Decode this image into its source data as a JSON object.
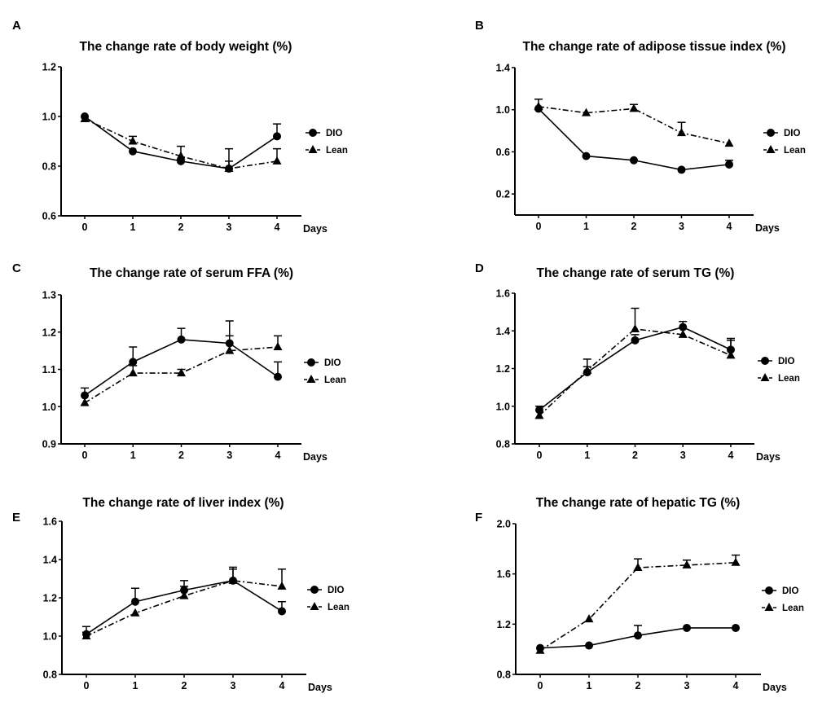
{
  "chart_data": [
    {
      "panel": "A",
      "type": "line",
      "title": "The change rate of body weight (%)",
      "xlabel": "Days",
      "categories": [
        "0",
        "1",
        "2",
        "3",
        "4"
      ],
      "yticks": [
        "0.6",
        "0.8",
        "1.0",
        "1.2"
      ],
      "ylim": [
        0.6,
        1.2
      ],
      "grid": false,
      "legend": "right",
      "series": [
        {
          "name": "DIO",
          "marker": "circle",
          "line": "solid",
          "values": [
            1.0,
            0.86,
            0.82,
            0.79,
            0.92
          ],
          "error": [
            0,
            0,
            0,
            0.03,
            0.05
          ]
        },
        {
          "name": "Lean",
          "marker": "triangle",
          "line": "dash-dot",
          "values": [
            0.99,
            0.9,
            0.84,
            0.79,
            0.82
          ],
          "error": [
            0,
            0.02,
            0.04,
            0.08,
            0.05
          ]
        }
      ]
    },
    {
      "panel": "B",
      "type": "line",
      "title": "The change rate of adipose tissue index (%)",
      "xlabel": "Days",
      "categories": [
        "0",
        "1",
        "2",
        "3",
        "4"
      ],
      "yticks": [
        "0.2",
        "0.6",
        "1.0",
        "1.4"
      ],
      "ylim": [
        0.0,
        1.4
      ],
      "grid": false,
      "legend": "right",
      "series": [
        {
          "name": "DIO",
          "marker": "circle",
          "line": "solid",
          "values": [
            1.01,
            0.56,
            0.52,
            0.43,
            0.48
          ],
          "error": [
            0.09,
            0,
            0,
            0,
            0.04
          ]
        },
        {
          "name": "Lean",
          "marker": "triangle",
          "line": "dash-dot",
          "values": [
            1.03,
            0.97,
            1.01,
            0.78,
            0.68
          ],
          "error": [
            0,
            0,
            0.04,
            0.1,
            0
          ]
        }
      ]
    },
    {
      "panel": "C",
      "type": "line",
      "title": "The change rate of serum FFA (%)",
      "xlabel": "Days",
      "categories": [
        "0",
        "1",
        "2",
        "3",
        "4"
      ],
      "yticks": [
        "0.9",
        "1.0",
        "1.1",
        "1.2",
        "1.3"
      ],
      "ylim": [
        0.9,
        1.3
      ],
      "grid": false,
      "legend": "right",
      "series": [
        {
          "name": "DIO",
          "marker": "circle",
          "line": "solid",
          "values": [
            1.03,
            1.12,
            1.18,
            1.17,
            1.08
          ],
          "error": [
            0.02,
            0.04,
            0.03,
            0.06,
            0.04
          ]
        },
        {
          "name": "Lean",
          "marker": "triangle",
          "line": "dash-dot",
          "values": [
            1.01,
            1.09,
            1.09,
            1.15,
            1.16
          ],
          "error": [
            0,
            0.02,
            0.01,
            0.04,
            0.03
          ]
        }
      ]
    },
    {
      "panel": "D",
      "type": "line",
      "title": "The change rate of serum TG (%)",
      "xlabel": "Days",
      "categories": [
        "0",
        "1",
        "2",
        "3",
        "4"
      ],
      "yticks": [
        "0.8",
        "1.0",
        "1.2",
        "1.4",
        "1.6"
      ],
      "ylim": [
        0.8,
        1.6
      ],
      "grid": false,
      "legend": "right",
      "series": [
        {
          "name": "DIO",
          "marker": "circle",
          "line": "solid",
          "values": [
            0.98,
            1.18,
            1.35,
            1.42,
            1.3
          ],
          "error": [
            0.02,
            0.03,
            0.03,
            0.03,
            0.06
          ]
        },
        {
          "name": "Lean",
          "marker": "triangle",
          "line": "dash-dot",
          "values": [
            0.95,
            1.19,
            1.41,
            1.38,
            1.27
          ],
          "error": [
            0,
            0.06,
            0.11,
            0,
            0.08
          ]
        }
      ]
    },
    {
      "panel": "E",
      "type": "line",
      "title": "The change rate of liver index (%)",
      "xlabel": "Days",
      "categories": [
        "0",
        "1",
        "2",
        "3",
        "4"
      ],
      "yticks": [
        "0.8",
        "1.0",
        "1.2",
        "1.4",
        "1.6"
      ],
      "ylim": [
        0.8,
        1.6
      ],
      "grid": false,
      "legend": "right",
      "series": [
        {
          "name": "DIO",
          "marker": "circle",
          "line": "solid",
          "values": [
            1.01,
            1.18,
            1.24,
            1.29,
            1.13
          ],
          "error": [
            0.04,
            0.07,
            0.05,
            0.07,
            0.05
          ]
        },
        {
          "name": "Lean",
          "marker": "triangle",
          "line": "dash-dot",
          "values": [
            1.0,
            1.12,
            1.21,
            1.29,
            1.26
          ],
          "error": [
            0.02,
            0,
            0.05,
            0.06,
            0.09
          ]
        }
      ]
    },
    {
      "panel": "F",
      "type": "line",
      "title": "The change rate of hepatic TG (%)",
      "xlabel": "Days",
      "categories": [
        "0",
        "1",
        "2",
        "3",
        "4"
      ],
      "yticks": [
        "0.8",
        "1.2",
        "1.6",
        "2.0"
      ],
      "ylim": [
        0.8,
        2.0
      ],
      "grid": false,
      "legend": "right",
      "series": [
        {
          "name": "DIO",
          "marker": "circle",
          "line": "solid",
          "values": [
            1.01,
            1.03,
            1.11,
            1.17,
            1.17
          ],
          "error": [
            0,
            0,
            0.08,
            0,
            0
          ]
        },
        {
          "name": "Lean",
          "marker": "triangle",
          "line": "dash-dot",
          "values": [
            0.99,
            1.24,
            1.65,
            1.67,
            1.69
          ],
          "error": [
            0,
            0,
            0.07,
            0.04,
            0.06
          ]
        }
      ]
    }
  ]
}
